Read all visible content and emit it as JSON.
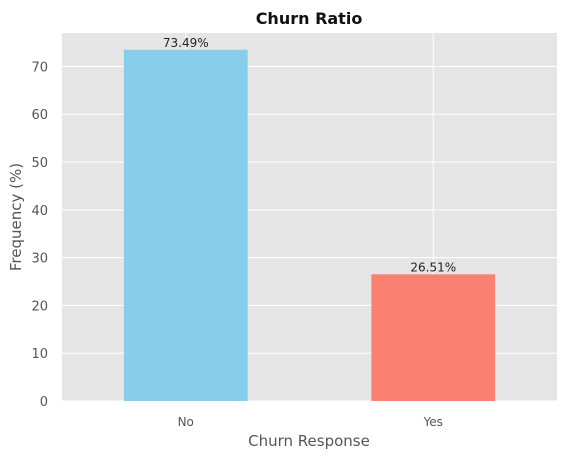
{
  "chart_data": {
    "type": "bar",
    "title": "Churn Ratio",
    "xlabel": "Churn Response",
    "ylabel": "Frequency (%)",
    "categories": [
      "No",
      "Yes"
    ],
    "values": [
      73.49,
      26.51
    ],
    "data_labels": [
      "73.49%",
      "26.51%"
    ],
    "bar_colors": [
      "#87CEEB",
      "#FA8072"
    ],
    "ylim": [
      0,
      77
    ],
    "yticks": [
      0,
      10,
      20,
      30,
      40,
      50,
      60,
      70
    ],
    "grid": true,
    "background": "#E5E5E5",
    "grid_color": "#FFFFFF"
  }
}
